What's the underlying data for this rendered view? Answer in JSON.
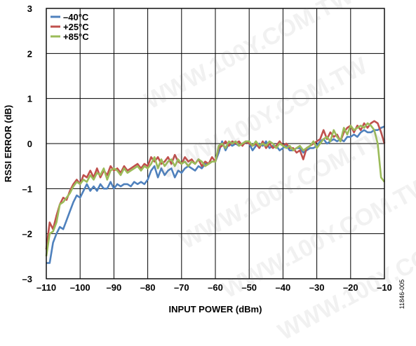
{
  "watermark": "WWW.100Y.COM.TW",
  "figure_id": "11846-005",
  "colors": {
    "s1": "#4f81bd",
    "s2": "#c0504d",
    "s3": "#9bbb59"
  },
  "chart_data": {
    "type": "line",
    "title": "",
    "xlabel": "INPUT POWER (dBm)",
    "ylabel": "RSSI ERROR (dB)",
    "xlim": [
      -110,
      -10
    ],
    "ylim": [
      -3,
      3
    ],
    "xticks": [
      -110,
      -100,
      -90,
      -80,
      -70,
      -60,
      -50,
      -40,
      -30,
      -20,
      -10
    ],
    "yticks": [
      -3,
      -2,
      -1,
      0,
      1,
      2,
      3
    ],
    "xtick_labels": [
      "–110",
      "–100",
      "–90",
      "–80",
      "–70",
      "–60",
      "–50",
      "–40",
      "–30",
      "–20",
      "–10"
    ],
    "ytick_labels": [
      "–3",
      "–2",
      "–1",
      "0",
      "1",
      "2",
      "3"
    ],
    "grid": true,
    "legend_position": "top-left",
    "series": [
      {
        "name": "–40°C",
        "x": [
          -110,
          -109,
          -108,
          -107,
          -106,
          -105,
          -104,
          -103,
          -102,
          -101,
          -100,
          -99,
          -98,
          -97,
          -96,
          -95,
          -94,
          -93,
          -92,
          -91,
          -90,
          -89,
          -88,
          -87,
          -86,
          -85,
          -84,
          -83,
          -82,
          -81,
          -80,
          -79,
          -78,
          -77,
          -76,
          -75,
          -74,
          -73,
          -72,
          -71,
          -70,
          -69,
          -68,
          -67,
          -66,
          -65,
          -64,
          -63,
          -62,
          -61,
          -60,
          -59,
          -58,
          -57,
          -56,
          -55,
          -54,
          -53,
          -52,
          -51,
          -50,
          -49,
          -48,
          -47,
          -46,
          -45,
          -44,
          -43,
          -42,
          -41,
          -40,
          -39,
          -38,
          -37,
          -36,
          -35,
          -34,
          -33,
          -32,
          -31,
          -30,
          -29,
          -28,
          -27,
          -26,
          -25,
          -24,
          -23,
          -22,
          -21,
          -20,
          -19,
          -18,
          -17,
          -16,
          -15,
          -14,
          -13,
          -12,
          -11,
          -10
        ],
        "y": [
          -2.65,
          -2.65,
          -2.2,
          -2.0,
          -1.85,
          -1.9,
          -1.7,
          -1.5,
          -1.3,
          -1.15,
          -1.2,
          -1.05,
          -0.9,
          -1.05,
          -0.95,
          -1.05,
          -0.9,
          -1.0,
          -1.0,
          -0.85,
          -1.0,
          -0.9,
          -0.95,
          -0.9,
          -0.9,
          -0.95,
          -0.85,
          -0.9,
          -0.85,
          -0.9,
          -0.8,
          -0.6,
          -0.5,
          -0.75,
          -0.55,
          -0.7,
          -0.6,
          -0.55,
          -0.75,
          -0.6,
          -0.65,
          -0.55,
          -0.5,
          -0.55,
          -0.6,
          -0.5,
          -0.55,
          -0.45,
          -0.45,
          -0.4,
          -0.4,
          -0.2,
          0.05,
          -0.15,
          0.0,
          -0.05,
          0.0,
          -0.05,
          0.0,
          0.05,
          0.0,
          -0.15,
          -0.05,
          0.0,
          -0.05,
          0.05,
          -0.1,
          -0.05,
          -0.05,
          -0.15,
          -0.1,
          -0.05,
          -0.15,
          -0.15,
          -0.1,
          -0.1,
          -0.2,
          -0.15,
          -0.1,
          -0.1,
          -0.05,
          0.05,
          0.1,
          0.0,
          0.05,
          0.1,
          0.05,
          0.1,
          0.05,
          0.15,
          0.15,
          0.2,
          0.15,
          0.25,
          0.3,
          0.25,
          0.25,
          0.3,
          0.3,
          0.35,
          0.38
        ]
      },
      {
        "name": "+25°C",
        "x": [
          -110,
          -109,
          -108,
          -107,
          -106,
          -105,
          -104,
          -103,
          -102,
          -101,
          -100,
          -99,
          -98,
          -97,
          -96,
          -95,
          -94,
          -93,
          -92,
          -91,
          -90,
          -89,
          -88,
          -87,
          -86,
          -85,
          -84,
          -83,
          -82,
          -81,
          -80,
          -79,
          -78,
          -77,
          -76,
          -75,
          -74,
          -73,
          -72,
          -71,
          -70,
          -69,
          -68,
          -67,
          -66,
          -65,
          -64,
          -63,
          -62,
          -61,
          -60,
          -59,
          -58,
          -57,
          -56,
          -55,
          -54,
          -53,
          -52,
          -51,
          -50,
          -49,
          -48,
          -47,
          -46,
          -45,
          -44,
          -43,
          -42,
          -41,
          -40,
          -39,
          -38,
          -37,
          -36,
          -35,
          -34,
          -33,
          -32,
          -31,
          -30,
          -29,
          -28,
          -27,
          -26,
          -25,
          -24,
          -23,
          -22,
          -21,
          -20,
          -19,
          -18,
          -17,
          -16,
          -15,
          -14,
          -13,
          -12,
          -11,
          -10
        ],
        "y": [
          -2.35,
          -1.75,
          -1.9,
          -1.6,
          -1.35,
          -1.2,
          -1.25,
          -1.05,
          -0.9,
          -0.8,
          -0.9,
          -0.7,
          -0.75,
          -0.6,
          -0.75,
          -0.55,
          -0.75,
          -0.6,
          -0.7,
          -0.5,
          -0.6,
          -0.55,
          -0.65,
          -0.5,
          -0.6,
          -0.55,
          -0.5,
          -0.45,
          -0.55,
          -0.45,
          -0.5,
          -0.3,
          -0.4,
          -0.3,
          -0.45,
          -0.4,
          -0.3,
          -0.45,
          -0.25,
          -0.4,
          -0.45,
          -0.3,
          -0.4,
          -0.35,
          -0.45,
          -0.35,
          -0.5,
          -0.4,
          -0.45,
          -0.3,
          -0.4,
          -0.1,
          -0.05,
          0.05,
          -0.05,
          0.05,
          0.0,
          0.05,
          -0.05,
          0.05,
          0.0,
          -0.05,
          0.0,
          -0.1,
          0.05,
          -0.1,
          0.0,
          -0.1,
          -0.05,
          0.05,
          -0.05,
          0.0,
          -0.1,
          -0.1,
          -0.2,
          -0.15,
          -0.35,
          -0.1,
          -0.05,
          0.0,
          0.05,
          0.1,
          0.3,
          0.1,
          0.25,
          0.15,
          0.2,
          0.05,
          0.25,
          0.35,
          0.4,
          0.25,
          0.4,
          0.3,
          0.45,
          0.35,
          0.45,
          0.5,
          0.45,
          0.25,
          0.0
        ]
      },
      {
        "name": "+85°C",
        "x": [
          -110,
          -109,
          -108,
          -107,
          -106,
          -105,
          -104,
          -103,
          -102,
          -101,
          -100,
          -99,
          -98,
          -97,
          -96,
          -95,
          -94,
          -93,
          -92,
          -91,
          -90,
          -89,
          -88,
          -87,
          -86,
          -85,
          -84,
          -83,
          -82,
          -81,
          -80,
          -79,
          -78,
          -77,
          -76,
          -75,
          -74,
          -73,
          -72,
          -71,
          -70,
          -69,
          -68,
          -67,
          -66,
          -65,
          -64,
          -63,
          -62,
          -61,
          -60,
          -59,
          -58,
          -57,
          -56,
          -55,
          -54,
          -53,
          -52,
          -51,
          -50,
          -49,
          -48,
          -47,
          -46,
          -45,
          -44,
          -43,
          -42,
          -41,
          -40,
          -39,
          -38,
          -37,
          -36,
          -35,
          -34,
          -33,
          -32,
          -31,
          -30,
          -29,
          -28,
          -27,
          -26,
          -25,
          -24,
          -23,
          -22,
          -21,
          -20,
          -19,
          -18,
          -17,
          -16,
          -15,
          -14,
          -13,
          -12,
          -11,
          -10
        ],
        "y": [
          -2.5,
          -2.0,
          -1.95,
          -1.75,
          -1.35,
          -1.3,
          -1.2,
          -1.1,
          -0.95,
          -0.85,
          -0.9,
          -0.8,
          -0.85,
          -0.7,
          -0.8,
          -0.65,
          -0.7,
          -0.55,
          -0.8,
          -0.6,
          -0.55,
          -0.6,
          -0.7,
          -0.55,
          -0.65,
          -0.6,
          -0.55,
          -0.5,
          -0.6,
          -0.5,
          -0.55,
          -0.45,
          -0.3,
          -0.55,
          -0.35,
          -0.5,
          -0.4,
          -0.35,
          -0.5,
          -0.35,
          -0.45,
          -0.4,
          -0.5,
          -0.4,
          -0.45,
          -0.35,
          -0.4,
          -0.5,
          -0.45,
          -0.4,
          -0.4,
          -0.05,
          0.0,
          -0.1,
          0.05,
          0.0,
          0.05,
          -0.05,
          0.0,
          0.05,
          0.05,
          -0.05,
          0.05,
          -0.05,
          0.0,
          -0.05,
          0.05,
          0.0,
          -0.1,
          0.0,
          -0.05,
          -0.1,
          -0.05,
          -0.15,
          -0.1,
          -0.05,
          -0.15,
          -0.1,
          -0.05,
          0.05,
          -0.1,
          0.0,
          0.1,
          0.15,
          0.05,
          0.3,
          0.15,
          0.05,
          0.35,
          0.2,
          0.4,
          0.3,
          0.35,
          0.4,
          0.35,
          0.45,
          0.4,
          0.3,
          0.0,
          -0.75,
          -0.85
        ]
      }
    ]
  }
}
